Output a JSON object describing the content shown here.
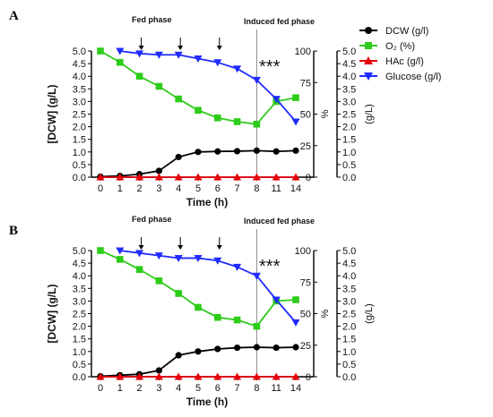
{
  "legend": {
    "items": [
      {
        "label": "DCW (g/l)",
        "color": "#000000",
        "marker": "circle"
      },
      {
        "label": "O₂ (%)",
        "color": "#2ecc1a",
        "marker": "square"
      },
      {
        "label": "HAc (g/l)",
        "color": "#e8000b",
        "marker": "triangle-up"
      },
      {
        "label": "Glucose (g/l)",
        "color": "#1f2bff",
        "marker": "triangle-down"
      }
    ]
  },
  "chart_data": [
    {
      "type": "line",
      "panel": "A",
      "xlabel": "Time (h)",
      "ylabel_left": "[DCW] (g/L)",
      "ylabel_mid": "%",
      "ylabel_right": "(g/L)",
      "x": [
        "0",
        "1",
        "2",
        "3",
        "4",
        "5",
        "6",
        "7",
        "8",
        "11",
        "14"
      ],
      "ylim_left": [
        0,
        5
      ],
      "yticks_left": [
        "0.0",
        "0.5",
        "1.0",
        "1.5",
        "2.0",
        "2.5",
        "3.0",
        "3.5",
        "4.0",
        "4.5",
        "5.0"
      ],
      "ylim_mid": [
        0,
        100
      ],
      "yticks_mid": [
        "0",
        "25",
        "50",
        "75",
        "100"
      ],
      "ylim_right": [
        0,
        5
      ],
      "yticks_right": [
        "0.0",
        "0.5",
        "1.0",
        "1.5",
        "2.0",
        "2.5",
        "3.0",
        "3.5",
        "4.0",
        "4.5",
        "5.0"
      ],
      "annotations": {
        "fed_phase": "Fed phase",
        "induced_phase": "Induced fed phase",
        "significance": "***"
      },
      "feed_arrows_at": [
        2,
        4,
        6
      ],
      "induction_line_at": 8,
      "series": [
        {
          "name": "DCW (g/l)",
          "axis": "left",
          "color": "#000000",
          "marker": "circle",
          "points": [
            [
              0,
              0.02
            ],
            [
              1,
              0.05
            ],
            [
              2,
              0.12
            ],
            [
              3,
              0.25
            ],
            [
              4,
              0.8
            ],
            [
              5,
              1.0
            ],
            [
              6,
              1.02
            ],
            [
              7,
              1.03
            ],
            [
              8,
              1.05
            ],
            [
              11,
              1.02
            ],
            [
              14,
              1.05
            ]
          ]
        },
        {
          "name": "O₂ (%)",
          "axis": "mid",
          "color": "#2ecc1a",
          "marker": "square",
          "points": [
            [
              0,
              100
            ],
            [
              1,
              91
            ],
            [
              2,
              80
            ],
            [
              3,
              72
            ],
            [
              4,
              62
            ],
            [
              5,
              53
            ],
            [
              6,
              47
            ],
            [
              7,
              44
            ],
            [
              8,
              42
            ],
            [
              11,
              60
            ],
            [
              14,
              63
            ]
          ]
        },
        {
          "name": "HAc (g/l)",
          "axis": "left",
          "color": "#e8000b",
          "marker": "triangle-up",
          "points": [
            [
              0,
              0
            ],
            [
              1,
              0
            ],
            [
              2,
              0
            ],
            [
              3,
              0
            ],
            [
              4,
              0
            ],
            [
              5,
              0
            ],
            [
              6,
              0
            ],
            [
              7,
              0
            ],
            [
              8,
              0
            ],
            [
              11,
              0
            ],
            [
              14,
              0
            ]
          ]
        },
        {
          "name": "Glucose (g/l)",
          "axis": "right",
          "color": "#1f2bff",
          "marker": "triangle-down",
          "points": [
            [
              1,
              5.0
            ],
            [
              2,
              4.9
            ],
            [
              3,
              4.85
            ],
            [
              4,
              4.85
            ],
            [
              5,
              4.7
            ],
            [
              6,
              4.55
            ],
            [
              7,
              4.3
            ],
            [
              8,
              3.85
            ],
            [
              11,
              3.1
            ],
            [
              14,
              2.2
            ]
          ]
        }
      ]
    },
    {
      "type": "line",
      "panel": "B",
      "xlabel": "Time (h)",
      "ylabel_left": "[DCW] (g/L)",
      "ylabel_mid": "%",
      "ylabel_right": "(g/L)",
      "x": [
        "0",
        "1",
        "2",
        "3",
        "4",
        "5",
        "6",
        "7",
        "8",
        "11",
        "14"
      ],
      "ylim_left": [
        0,
        5
      ],
      "yticks_left": [
        "0.0",
        "0.5",
        "1.0",
        "1.5",
        "2.0",
        "2.5",
        "3.0",
        "3.5",
        "4.0",
        "4.5",
        "5.0"
      ],
      "ylim_mid": [
        0,
        100
      ],
      "yticks_mid": [
        "0",
        "25",
        "50",
        "75",
        "100"
      ],
      "ylim_right": [
        0,
        5
      ],
      "yticks_right": [
        "0.0",
        "0.5",
        "1.0",
        "1.5",
        "2.0",
        "2.5",
        "3.0",
        "3.5",
        "4.0",
        "4.5",
        "5.0"
      ],
      "annotations": {
        "fed_phase": "Fed phase",
        "induced_phase": "Induced fed phase",
        "significance": "***"
      },
      "feed_arrows_at": [
        2,
        4,
        6
      ],
      "induction_line_at": 8,
      "series": [
        {
          "name": "DCW (g/l)",
          "axis": "left",
          "color": "#000000",
          "marker": "circle",
          "points": [
            [
              0,
              0.02
            ],
            [
              1,
              0.06
            ],
            [
              2,
              0.1
            ],
            [
              3,
              0.25
            ],
            [
              4,
              0.85
            ],
            [
              5,
              1.0
            ],
            [
              6,
              1.1
            ],
            [
              7,
              1.15
            ],
            [
              8,
              1.17
            ],
            [
              11,
              1.15
            ],
            [
              14,
              1.17
            ]
          ]
        },
        {
          "name": "O₂ (%)",
          "axis": "mid",
          "color": "#2ecc1a",
          "marker": "square",
          "points": [
            [
              0,
              100
            ],
            [
              1,
              93
            ],
            [
              2,
              85
            ],
            [
              3,
              76
            ],
            [
              4,
              66
            ],
            [
              5,
              55
            ],
            [
              6,
              47
            ],
            [
              7,
              45
            ],
            [
              8,
              40
            ],
            [
              11,
              60
            ],
            [
              14,
              61
            ]
          ]
        },
        {
          "name": "HAc (g/l)",
          "axis": "left",
          "color": "#e8000b",
          "marker": "triangle-up",
          "points": [
            [
              0,
              0
            ],
            [
              1,
              0
            ],
            [
              2,
              0
            ],
            [
              3,
              0
            ],
            [
              4,
              0
            ],
            [
              5,
              0
            ],
            [
              6,
              0
            ],
            [
              7,
              0
            ],
            [
              8,
              0
            ],
            [
              11,
              0
            ],
            [
              14,
              0
            ]
          ]
        },
        {
          "name": "Glucose (g/l)",
          "axis": "right",
          "color": "#1f2bff",
          "marker": "triangle-down",
          "points": [
            [
              1,
              5.0
            ],
            [
              2,
              4.9
            ],
            [
              3,
              4.8
            ],
            [
              4,
              4.7
            ],
            [
              5,
              4.7
            ],
            [
              6,
              4.6
            ],
            [
              7,
              4.35
            ],
            [
              8,
              4.0
            ],
            [
              11,
              3.05
            ],
            [
              14,
              2.15
            ]
          ]
        }
      ]
    }
  ]
}
